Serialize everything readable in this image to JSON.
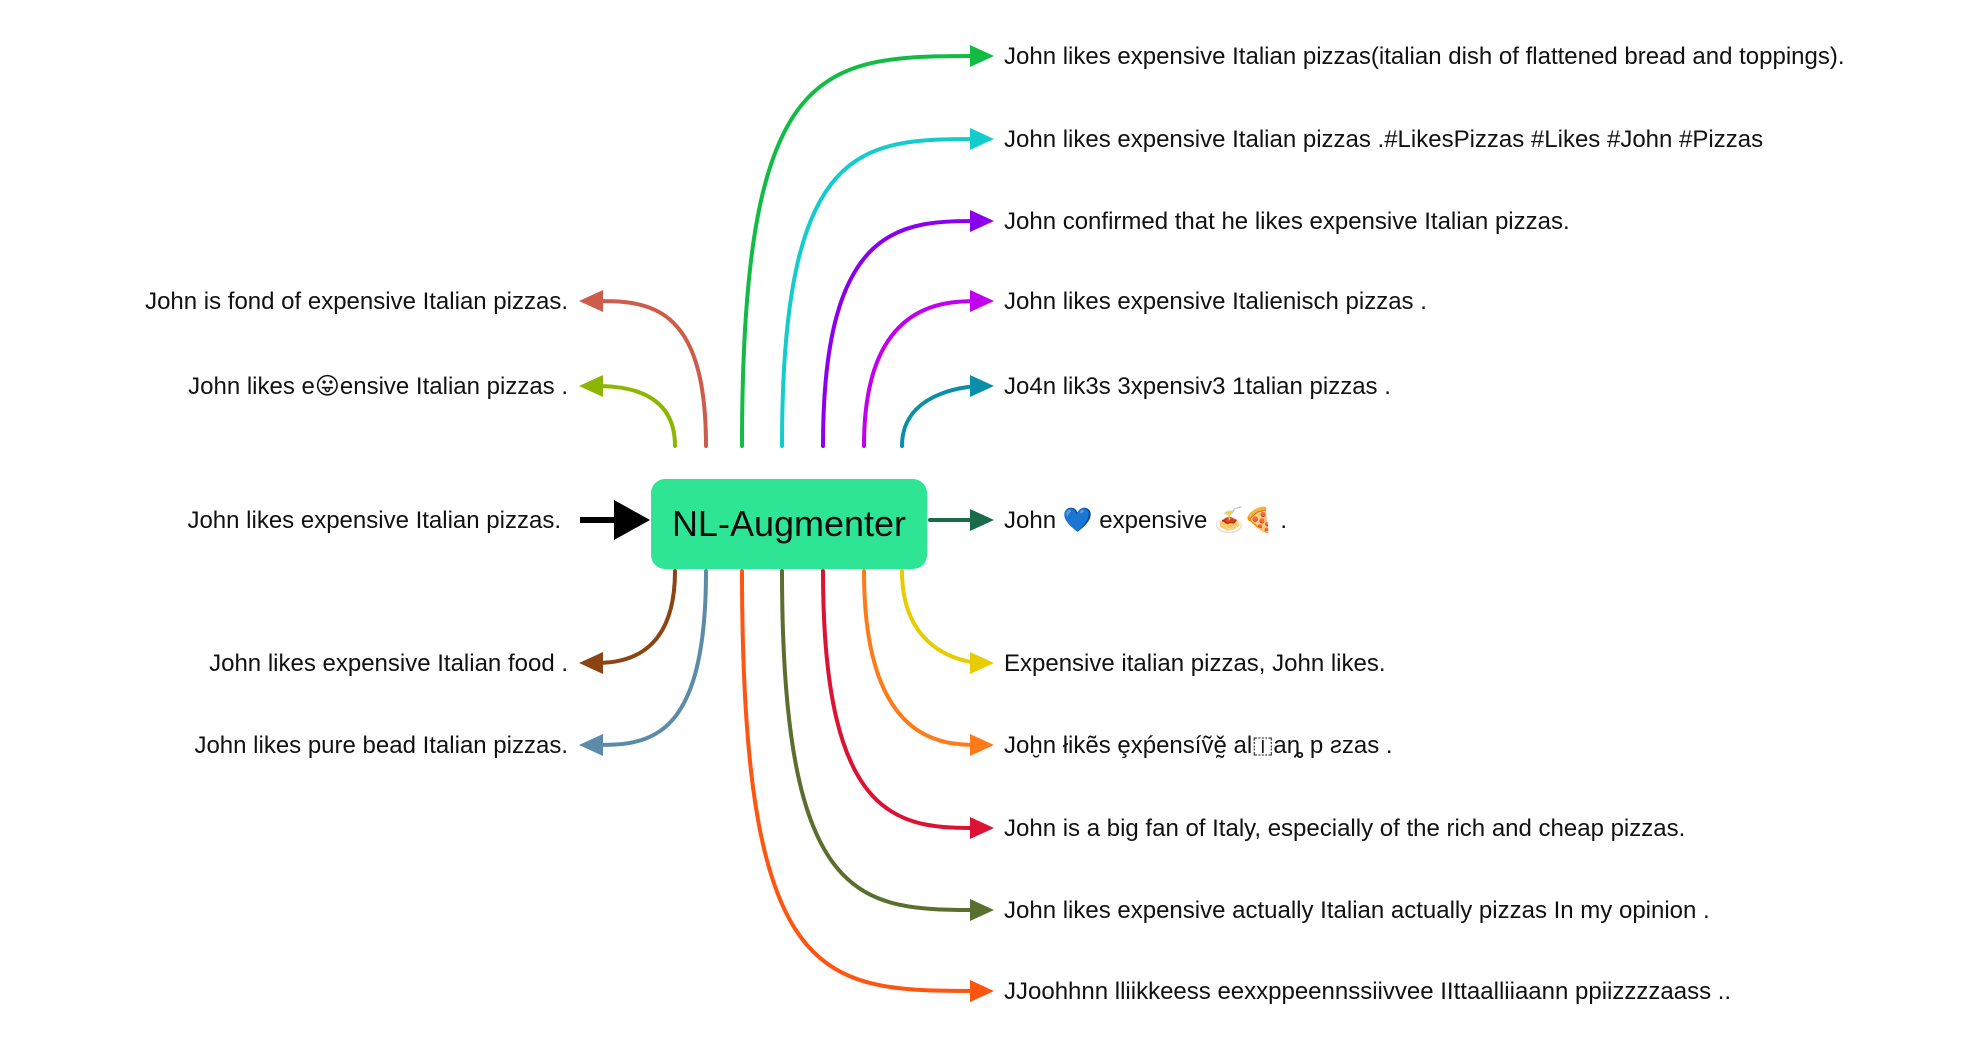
{
  "center": {
    "label": "NL-Augmenter",
    "fill": "#2ee596"
  },
  "input": {
    "label": "John likes expensive Italian pizzas.",
    "color": "#000000"
  },
  "left_outputs": [
    {
      "label": "John is fond of expensive Italian pizzas.",
      "color": "#cd5c4a"
    },
    {
      "label": "John likes e😛ensive Italian pizzas .",
      "color": "#8db600"
    },
    {
      "label": "John likes expensive Italian food .",
      "color": "#8b4513"
    },
    {
      "label": "John likes pure bead Italian pizzas.",
      "color": "#5b8ba8"
    }
  ],
  "right_outputs": [
    {
      "label": "John likes expensive Italian pizzas(italian dish of flattened bread and toppings).",
      "color": "#11bb44"
    },
    {
      "label": "John likes expensive Italian pizzas .#LikesPizzas #Likes #John #Pizzas",
      "color": "#14cccc"
    },
    {
      "label": "John confirmed that he likes expensive Italian pizzas.",
      "color": "#8a00ee"
    },
    {
      "label": "John likes expensive Italienisch pizzas .",
      "color": "#c200f0"
    },
    {
      "label": "Jo4n lik3s 3xpensiv3 1talian pizzas .",
      "color": "#0b8fa8"
    },
    {
      "label": "John 💙 expensive 🍝🍕 .",
      "color": "#1a6b4a"
    },
    {
      "label": "Expensive italian pizzas, John likes.",
      "color": "#e6cc00"
    },
    {
      "label": "Joḫn łikẽs ȩxṕensíṽḛ̌ al🇮aȵ p ƨzas .",
      "color": "#ff7b1a"
    },
    {
      "label": "John is a big fan of Italy, especially of the rich and cheap pizzas.",
      "color": "#dd1133"
    },
    {
      "label": "John likes expensive actually Italian actually pizzas In my opinion .",
      "color": "#5a6e2e"
    },
    {
      "label": "JJoohhnn lliikkeess eexxppeennssiivvee IIttaalliiaann ppiizzzzaass ..",
      "color": "#ff5511"
    }
  ]
}
